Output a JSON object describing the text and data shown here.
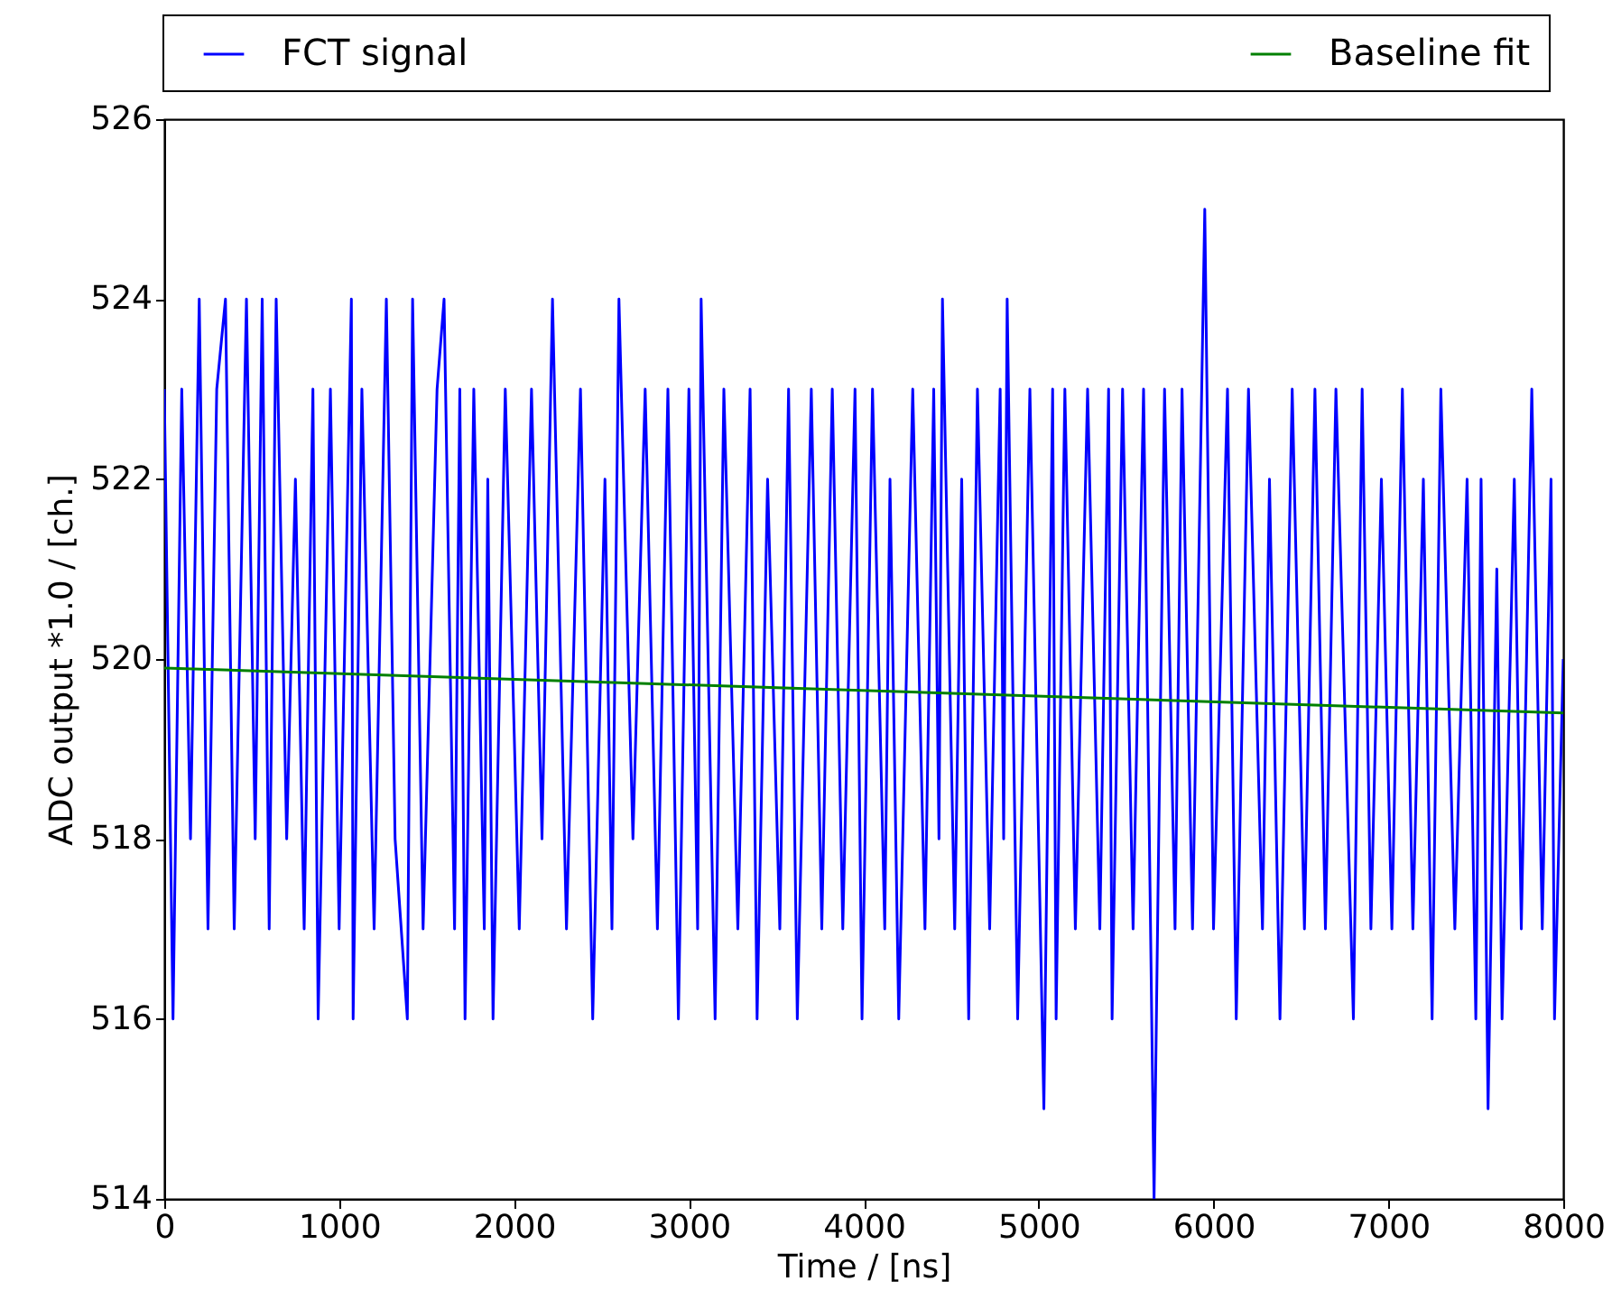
{
  "chart_data": {
    "type": "line",
    "xlabel": "Time / [ns]",
    "ylabel": "ADC output *1.0 / [ch.]",
    "xlim": [
      0,
      8000
    ],
    "xticks": [
      0,
      1000,
      2000,
      3000,
      4000,
      5000,
      6000,
      7000,
      8000
    ],
    "ylim": [
      514,
      526
    ],
    "yticks": [
      514,
      516,
      518,
      520,
      522,
      524,
      526
    ],
    "grid": false,
    "legend": "top",
    "line_style": "solid",
    "series": [
      {
        "name": "FCT signal",
        "color": "#0000ff",
        "x": [
          0,
          50,
          100,
          150,
          200,
          250,
          300,
          350,
          400,
          470,
          520,
          560,
          600,
          640,
          700,
          750,
          800,
          850,
          880,
          950,
          1000,
          1070,
          1080,
          1130,
          1200,
          1270,
          1320,
          1390,
          1420,
          1480,
          1560,
          1600,
          1660,
          1690,
          1720,
          1770,
          1830,
          1850,
          1880,
          1950,
          2030,
          2100,
          2160,
          2220,
          2300,
          2380,
          2450,
          2520,
          2560,
          2600,
          2680,
          2750,
          2820,
          2880,
          2940,
          3000,
          3050,
          3070,
          3150,
          3200,
          3280,
          3350,
          3390,
          3450,
          3520,
          3570,
          3620,
          3700,
          3760,
          3820,
          3880,
          3950,
          3990,
          4050,
          4120,
          4150,
          4200,
          4280,
          4350,
          4400,
          4430,
          4450,
          4520,
          4560,
          4600,
          4650,
          4720,
          4780,
          4800,
          4820,
          4880,
          4950,
          5030,
          5080,
          5100,
          5150,
          5210,
          5280,
          5350,
          5400,
          5420,
          5480,
          5540,
          5600,
          5660,
          5720,
          5780,
          5820,
          5880,
          5950,
          6000,
          6080,
          6130,
          6200,
          6280,
          6320,
          6380,
          6450,
          6520,
          6580,
          6640,
          6700,
          6800,
          6850,
          6900,
          6960,
          7020,
          7080,
          7140,
          7200,
          7250,
          7300,
          7380,
          7450,
          7500,
          7530,
          7570,
          7620,
          7650,
          7720,
          7760,
          7820,
          7880,
          7930,
          7950,
          8000
        ],
        "values": [
          523,
          516,
          523,
          518,
          524,
          517,
          523,
          524,
          517,
          524,
          518,
          524,
          517,
          524,
          518,
          522,
          517,
          523,
          516,
          523,
          517,
          524,
          516,
          523,
          517,
          524,
          518,
          516,
          524,
          517,
          523,
          524,
          517,
          523,
          516,
          523,
          517,
          522,
          516,
          523,
          517,
          523,
          518,
          524,
          517,
          523,
          516,
          522,
          517,
          524,
          518,
          523,
          517,
          523,
          516,
          523,
          517,
          524,
          516,
          523,
          517,
          523,
          516,
          522,
          517,
          523,
          516,
          523,
          517,
          523,
          517,
          523,
          516,
          523,
          517,
          522,
          516,
          523,
          517,
          523,
          518,
          524,
          517,
          522,
          516,
          523,
          517,
          523,
          518,
          524,
          516,
          523,
          515,
          523,
          516,
          523,
          517,
          523,
          517,
          523,
          516,
          523,
          517,
          523,
          514,
          523,
          517,
          523,
          517,
          525,
          517,
          523,
          516,
          523,
          517,
          522,
          516,
          523,
          517,
          523,
          517,
          523,
          516,
          523,
          517,
          522,
          517,
          523,
          517,
          522,
          516,
          523,
          517,
          522,
          516,
          522,
          515,
          521,
          516,
          522,
          517,
          523,
          517,
          522,
          516,
          520
        ]
      },
      {
        "name": "Baseline fit",
        "color": "#008000",
        "x": [
          0,
          8000
        ],
        "values": [
          519.9,
          519.4
        ]
      }
    ]
  }
}
